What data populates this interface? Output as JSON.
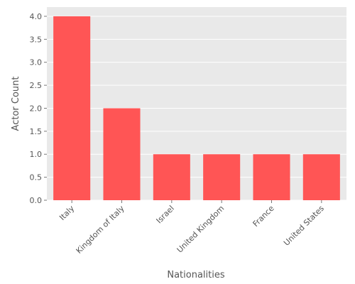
{
  "chart_data": {
    "type": "bar",
    "title": "",
    "xlabel": "Nationalities",
    "ylabel": "Actor Count",
    "categories": [
      "Italy",
      "Kingdom of Italy",
      "Israel",
      "United Kingdom",
      "France",
      "United States"
    ],
    "values": [
      4,
      2,
      1,
      1,
      1,
      1
    ],
    "ylim": [
      0,
      4.2
    ],
    "yticks": [
      "0.0",
      "0.5",
      "1.0",
      "1.5",
      "2.0",
      "2.5",
      "3.0",
      "3.5",
      "4.0"
    ],
    "grid": true,
    "legend": "none",
    "colors": {
      "bar": "#ff5555",
      "plot_background": "#e9e9e9",
      "grid": "#ffffff",
      "text": "#555555"
    }
  }
}
